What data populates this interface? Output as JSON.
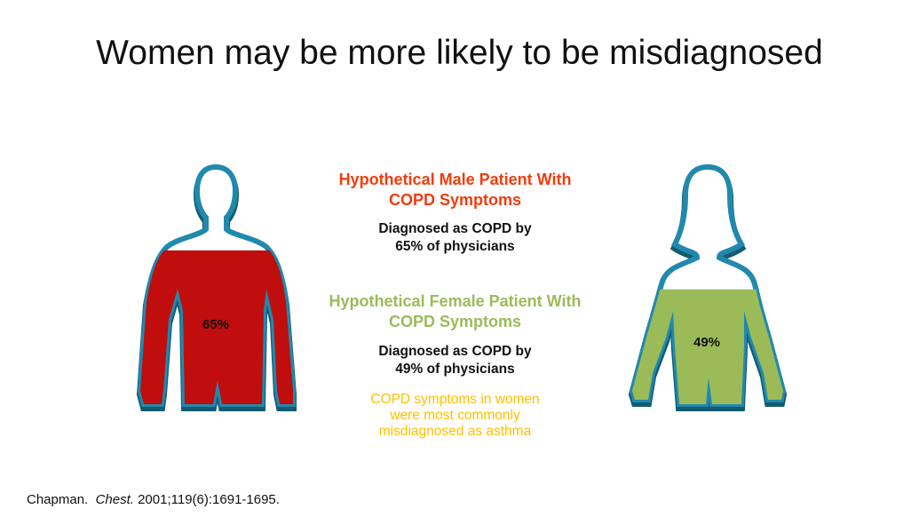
{
  "title": "Women may be more likely to be misdiagnosed",
  "male": {
    "heading_line1": "Hypothetical Male Patient With",
    "heading_line2": "COPD Symptoms",
    "detail_line1": "Diagnosed as COPD by",
    "detail_line2": "65% of physicians",
    "figure_label": "65%",
    "percent": 65
  },
  "female": {
    "heading_line1": "Hypothetical Female Patient With",
    "heading_line2": "COPD Symptoms",
    "detail_line1": "Diagnosed as COPD by",
    "detail_line2": "49% of physicians",
    "figure_label": "49%",
    "percent": 49
  },
  "note": {
    "line1": "COPD symptoms  in women",
    "line2": "were most commonly",
    "line3": "misdiagnosed  as asthma"
  },
  "citation": {
    "author": "Chapman.",
    "journal": "Chest.",
    "details": "2001;119(6):1691-1695."
  },
  "colors": {
    "male": "#c00d0d",
    "female": "#9bbb59",
    "male_heading": "#f23c0c",
    "female_heading": "#9bbb59",
    "note": "#ffc000",
    "outline": "#2189ad",
    "outline_shadow": "#145a70"
  }
}
